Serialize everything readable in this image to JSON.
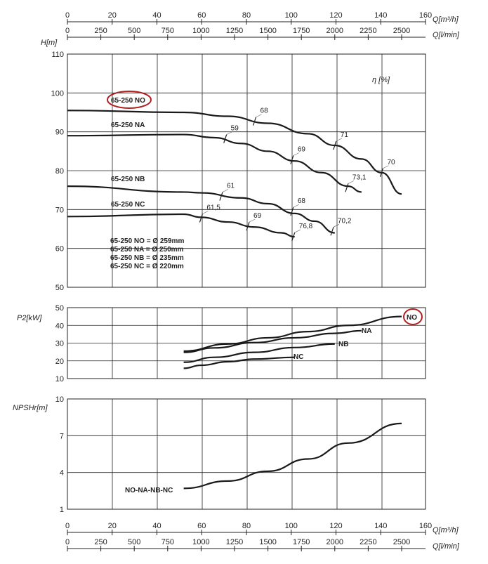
{
  "chart_data": [
    {
      "type": "line",
      "ylabel": "H[m]",
      "ylim": [
        50,
        110
      ],
      "yticks": [
        50,
        60,
        70,
        80,
        90,
        100,
        110
      ],
      "efficiency_label": "η [%]",
      "series": [
        {
          "name": "65-250 NO",
          "x": [
            0,
            870,
            1200,
            1500,
            1800,
            2000,
            2200,
            2350,
            2500
          ],
          "values": [
            95.5,
            95,
            94,
            92.2,
            89.5,
            86.5,
            83,
            79.5,
            74
          ]
        },
        {
          "name": "65-250 NA",
          "x": [
            0,
            870,
            1100,
            1300,
            1500,
            1700,
            1900,
            2100,
            2200
          ],
          "values": [
            89,
            89.3,
            88.5,
            87,
            85,
            82.5,
            79.5,
            76,
            74.5
          ]
        },
        {
          "name": "65-250 NB",
          "x": [
            0,
            870,
            1000,
            1300,
            1500,
            1700,
            1850,
            2000
          ],
          "values": [
            76,
            74.5,
            74.3,
            73,
            71.5,
            69,
            67,
            64
          ]
        },
        {
          "name": "65-250 NC",
          "x": [
            0,
            870,
            1000,
            1200,
            1400,
            1600,
            1700
          ],
          "values": [
            68.2,
            68.8,
            68,
            66.8,
            65.5,
            64,
            63
          ]
        }
      ],
      "efficiency_marks": [
        {
          "label": "68",
          "x": 1400,
          "y": 92.7
        },
        {
          "label": "71",
          "x": 2000,
          "y": 86.5
        },
        {
          "label": "70",
          "x": 2350,
          "y": 79.5
        },
        {
          "label": "59",
          "x": 1180,
          "y": 88.2
        },
        {
          "label": "69",
          "x": 1680,
          "y": 82.8
        },
        {
          "label": "73,1",
          "x": 2090,
          "y": 75.6
        },
        {
          "label": "61",
          "x": 1150,
          "y": 73.4
        },
        {
          "label": "68",
          "x": 1680,
          "y": 69.5
        },
        {
          "label": "70,2",
          "x": 1980,
          "y": 64.4
        },
        {
          "label": "61,5",
          "x": 1000,
          "y": 67.8
        },
        {
          "label": "69",
          "x": 1350,
          "y": 65.7
        },
        {
          "label": "76,8",
          "x": 1690,
          "y": 63
        }
      ],
      "diameters": [
        "65-250 NO = Ø 259mm",
        "65-250 NA = Ø 250mm",
        "65-250 NB = Ø 235mm",
        "65-250 NC = Ø 220mm"
      ]
    },
    {
      "type": "line",
      "ylabel": "P2[kW]",
      "ylim": [
        10,
        50
      ],
      "yticks": [
        10,
        20,
        30,
        40,
        50
      ],
      "series": [
        {
          "name": "NO",
          "x": [
            870,
            1200,
            1500,
            1800,
            2100,
            2500
          ],
          "values": [
            25.5,
            29.5,
            33,
            36.5,
            40,
            45
          ]
        },
        {
          "name": "NA",
          "x": [
            870,
            1100,
            1400,
            1700,
            2000,
            2200
          ],
          "values": [
            24.8,
            27.3,
            30.3,
            33,
            35.5,
            37
          ]
        },
        {
          "name": "NB",
          "x": [
            870,
            1100,
            1400,
            1700,
            2000
          ],
          "values": [
            19.2,
            22,
            24.8,
            27.5,
            29.5
          ]
        },
        {
          "name": "NC",
          "x": [
            870,
            1000,
            1200,
            1400,
            1700
          ],
          "values": [
            15.8,
            17.5,
            19.5,
            21,
            22
          ]
        }
      ]
    },
    {
      "type": "line",
      "ylabel": "NPSHr[m]",
      "ylim": [
        1,
        10
      ],
      "yticks": [
        1,
        4,
        7,
        10
      ],
      "series": [
        {
          "name": "NO-NA-NB-NC",
          "x": [
            870,
            1200,
            1500,
            1800,
            2100,
            2500
          ],
          "values": [
            2.7,
            3.3,
            4.1,
            5.1,
            6.4,
            8.0
          ]
        }
      ]
    }
  ],
  "x_axes": {
    "q_m3h": {
      "label": "Q[m³/h]",
      "max": 160,
      "ticks": [
        0,
        20,
        40,
        60,
        80,
        100,
        120,
        140,
        160
      ]
    },
    "q_lmin": {
      "label": "Q[l/min]",
      "ticks": [
        0,
        250,
        500,
        750,
        1000,
        1250,
        1500,
        1750,
        2000,
        2250,
        2500
      ]
    }
  },
  "highlight_color": "#b02020"
}
